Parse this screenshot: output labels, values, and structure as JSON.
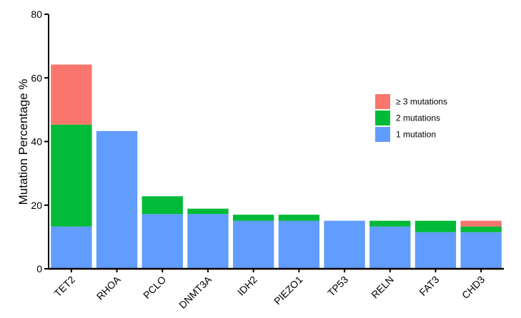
{
  "chart_data": {
    "type": "bar",
    "stacked": true,
    "categories": [
      "TET2",
      "RHOA",
      "PCLO",
      "DNMT3A",
      "IDH2",
      "PIEZO1",
      "TP53",
      "RELN",
      "FAT3",
      "CHD3"
    ],
    "series": [
      {
        "name": "1 mutation",
        "color": "#619CFF",
        "values": [
          13.3,
          43.3,
          17.2,
          17.2,
          15.1,
          15.1,
          15.1,
          13.3,
          11.5,
          11.5
        ]
      },
      {
        "name": "2 mutations",
        "color": "#00BA38",
        "values": [
          32.0,
          0,
          5.6,
          1.7,
          1.9,
          1.9,
          0,
          1.8,
          3.6,
          1.8
        ]
      },
      {
        "name": "≥ 3 mutations",
        "color": "#F8766D",
        "values": [
          18.9,
          0,
          0,
          0,
          0,
          0,
          0,
          0,
          0,
          1.8
        ]
      }
    ],
    "legend_order": [
      "≥ 3 mutations",
      "2 mutations",
      "1 mutation"
    ],
    "ylabel": "Mutation Percentage %",
    "xlabel": "",
    "ylim": [
      0,
      80
    ],
    "yticks": [
      0,
      20,
      40,
      60,
      80
    ],
    "grid": false,
    "legend_position": "right"
  }
}
